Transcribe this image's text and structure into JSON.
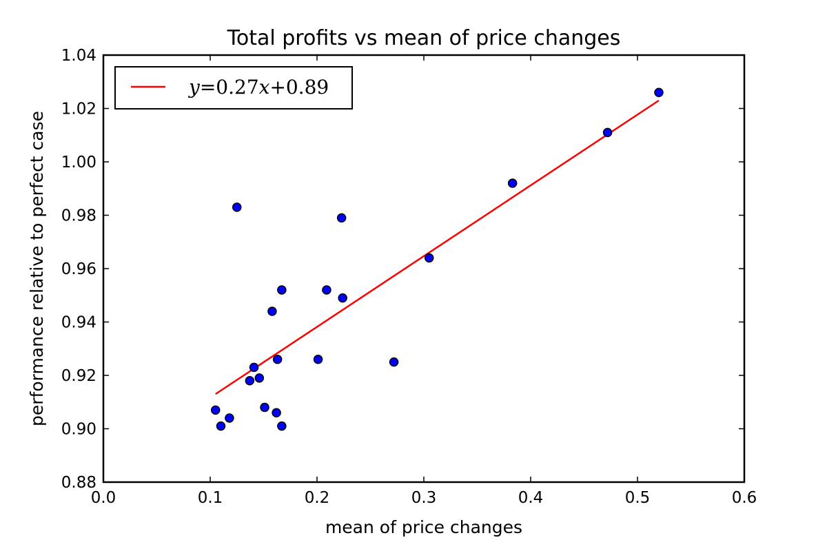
{
  "chart_data": {
    "type": "scatter",
    "title": "Total profits vs mean of price changes",
    "xlabel": "mean of price changes",
    "ylabel": "performance relative to perfect case",
    "xlim": [
      0.0,
      0.6
    ],
    "ylim": [
      0.88,
      1.04
    ],
    "x_ticks": [
      0.0,
      0.1,
      0.2,
      0.3,
      0.4,
      0.5,
      0.6
    ],
    "x_tick_labels": [
      "0.0",
      "0.1",
      "0.2",
      "0.3",
      "0.4",
      "0.5",
      "0.6"
    ],
    "y_ticks": [
      0.88,
      0.9,
      0.92,
      0.94,
      0.96,
      0.98,
      1.0,
      1.02,
      1.04
    ],
    "y_tick_labels": [
      "0.88",
      "0.90",
      "0.92",
      "0.94",
      "0.96",
      "0.98",
      "1.00",
      "1.02",
      "1.04"
    ],
    "grid": false,
    "legend_position": "top-left",
    "series": [
      {
        "kind": "scatter",
        "color": "#0000ff",
        "points": [
          {
            "x": 0.105,
            "y": 0.907
          },
          {
            "x": 0.11,
            "y": 0.901
          },
          {
            "x": 0.118,
            "y": 0.904
          },
          {
            "x": 0.125,
            "y": 0.983
          },
          {
            "x": 0.137,
            "y": 0.918
          },
          {
            "x": 0.141,
            "y": 0.923
          },
          {
            "x": 0.146,
            "y": 0.919
          },
          {
            "x": 0.151,
            "y": 0.908
          },
          {
            "x": 0.158,
            "y": 0.944
          },
          {
            "x": 0.162,
            "y": 0.906
          },
          {
            "x": 0.163,
            "y": 0.926
          },
          {
            "x": 0.167,
            "y": 0.952
          },
          {
            "x": 0.167,
            "y": 0.901
          },
          {
            "x": 0.201,
            "y": 0.926
          },
          {
            "x": 0.209,
            "y": 0.952
          },
          {
            "x": 0.223,
            "y": 0.979
          },
          {
            "x": 0.224,
            "y": 0.949
          },
          {
            "x": 0.272,
            "y": 0.925
          },
          {
            "x": 0.305,
            "y": 0.964
          },
          {
            "x": 0.383,
            "y": 0.992
          },
          {
            "x": 0.472,
            "y": 1.011
          },
          {
            "x": 0.52,
            "y": 1.026
          }
        ]
      },
      {
        "kind": "line",
        "name": "y=0.27x+0.89",
        "color": "#ff0000",
        "slope": 0.27,
        "intercept": 0.89,
        "x": [
          0.105,
          0.52
        ],
        "y": [
          0.913,
          1.023
        ]
      }
    ],
    "legend": {
      "entries": [
        {
          "label_prefix": "y",
          "label_eq": "=0.27",
          "label_var": "x",
          "label_rest": "+0.89",
          "color": "#ff0000"
        }
      ]
    }
  }
}
